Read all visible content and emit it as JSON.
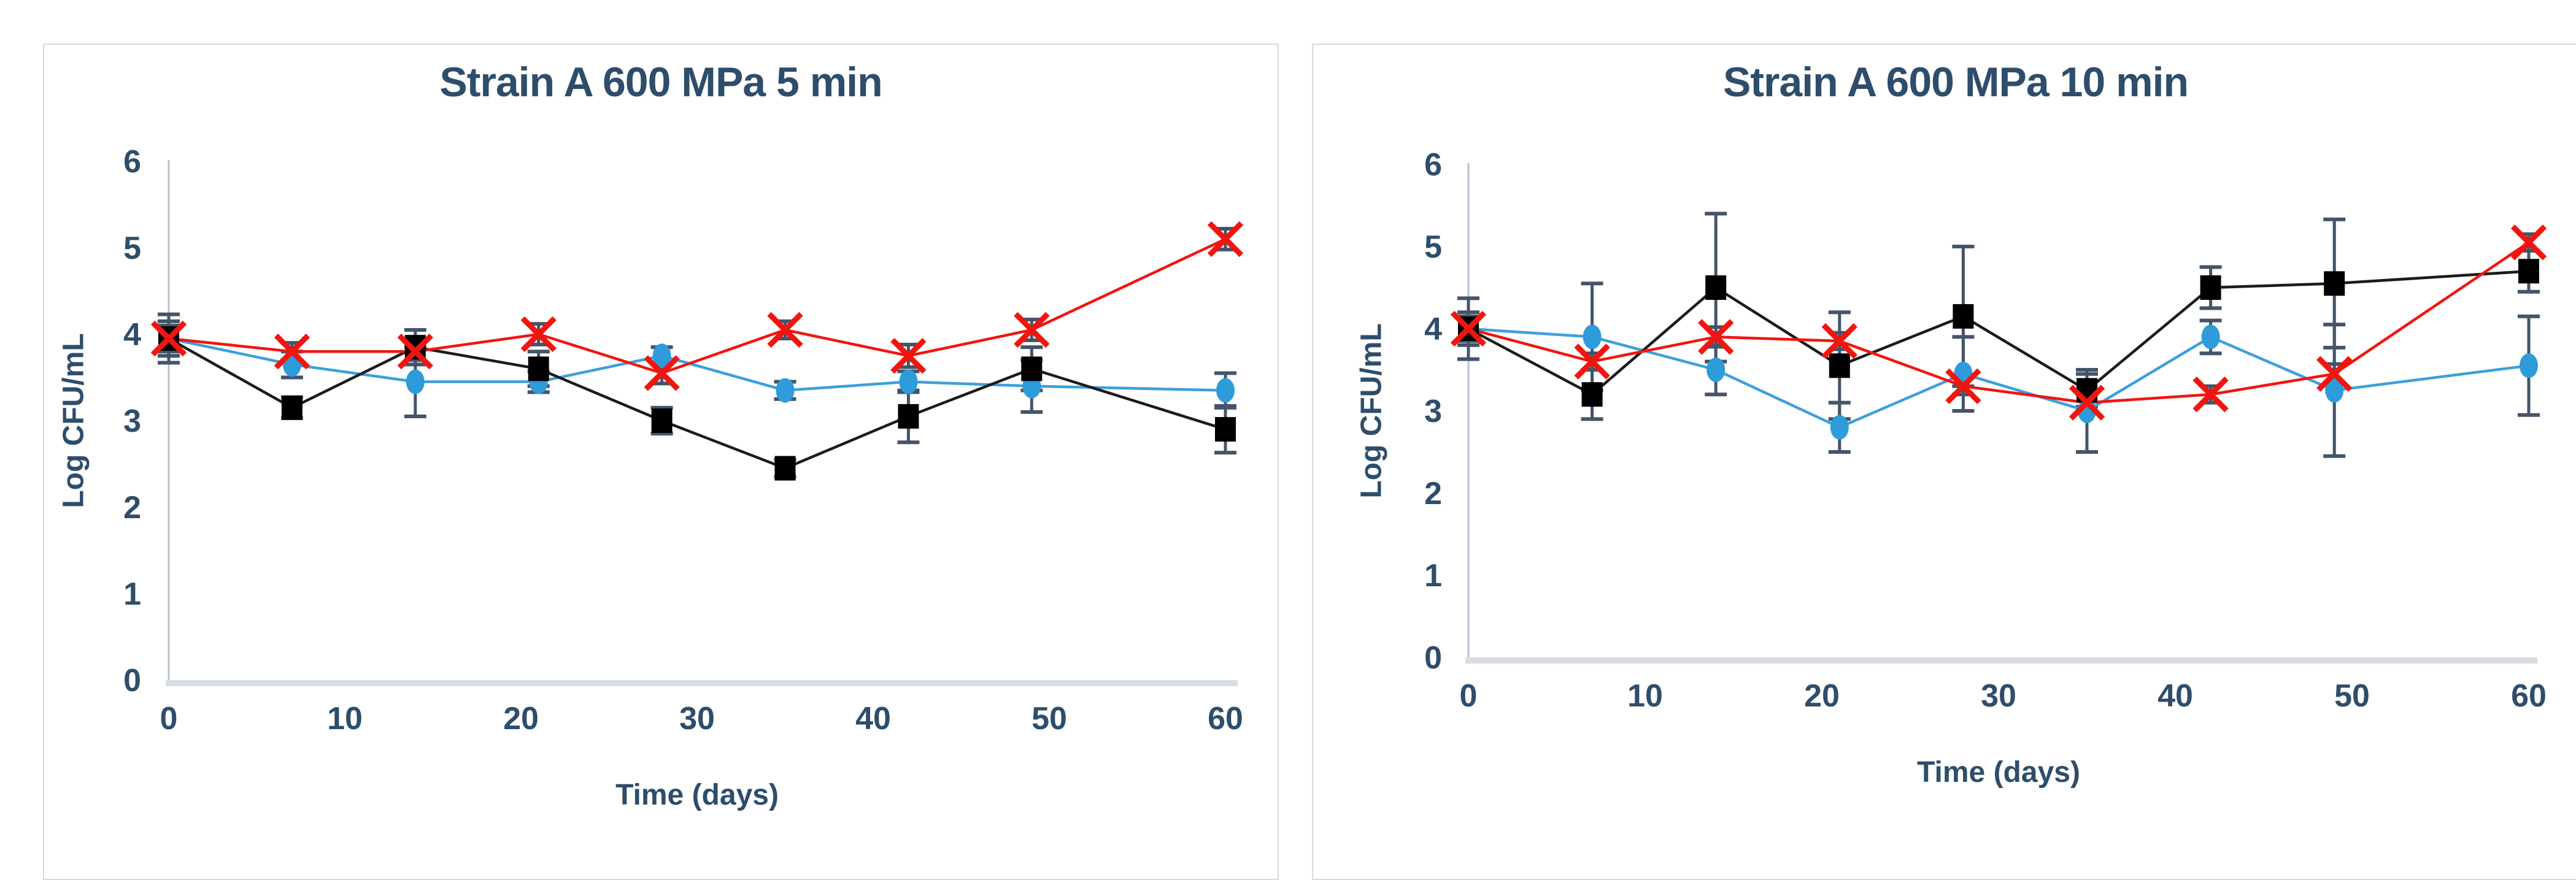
{
  "page": {
    "background": "#ffffff",
    "panel_border": "#d9d9d9",
    "text_color": "#2e4d6b",
    "axis_line_color": "#b6c2d0",
    "baseline_color": "#d8dde3",
    "error_bar_color": "#44546a"
  },
  "chart_data": [
    {
      "type": "line",
      "title": "Strain A 600 MPa 5 min",
      "xlabel": "Time (days)",
      "ylabel": "Log CFU/mL",
      "xlim": [
        0,
        60
      ],
      "ylim": [
        0,
        6
      ],
      "x_ticks": [
        0,
        10,
        20,
        30,
        40,
        50,
        60
      ],
      "y_ticks": [
        0,
        1,
        2,
        3,
        4,
        5,
        6
      ],
      "grid": false,
      "legend": "none",
      "x": [
        0,
        7,
        14,
        21,
        28,
        35,
        42,
        49,
        60
      ],
      "series": [
        {
          "name": "blue-circle-series",
          "marker": "circle",
          "marker_color": "#2e9bda",
          "line_color": "#3e9fdb",
          "values": [
            3.95,
            3.65,
            3.45,
            3.45,
            3.75,
            3.35,
            3.45,
            3.4,
            3.35
          ],
          "errors": [
            0.15,
            0.15,
            0.4,
            0.12,
            0.1,
            0.1,
            0.12,
            0.3,
            0.2
          ]
        },
        {
          "name": "black-square-series",
          "marker": "square",
          "marker_color": "#000000",
          "line_color": "#1b1b1b",
          "values": [
            3.95,
            3.15,
            3.85,
            3.6,
            3.0,
            2.45,
            3.05,
            3.6,
            2.9
          ],
          "errors": [
            0.28,
            0.12,
            0.2,
            0.2,
            0.15,
            0.1,
            0.3,
            0.25,
            0.27
          ]
        },
        {
          "name": "red-x-series",
          "marker": "x",
          "marker_color": "#f2150f",
          "line_color": "#f2150f",
          "values": [
            3.95,
            3.8,
            3.8,
            4.0,
            3.55,
            4.05,
            3.75,
            4.05,
            5.1
          ],
          "errors": [
            0.2,
            0.1,
            0.1,
            0.12,
            0.12,
            0.1,
            0.13,
            0.12,
            0.12
          ]
        }
      ]
    },
    {
      "type": "line",
      "title": "Strain A 600 MPa 10 min",
      "xlabel": "Time (days)",
      "ylabel": "Log CFU/mL",
      "xlim": [
        0,
        60
      ],
      "ylim": [
        0,
        6
      ],
      "x_ticks": [
        0,
        10,
        20,
        30,
        40,
        50,
        60
      ],
      "y_ticks": [
        0,
        1,
        2,
        3,
        4,
        5,
        6
      ],
      "grid": false,
      "legend": "none",
      "x": [
        0,
        7,
        14,
        21,
        28,
        35,
        42,
        49,
        60
      ],
      "series": [
        {
          "name": "blue-circle-series",
          "marker": "circle",
          "marker_color": "#2e9bda",
          "line_color": "#3e9fdb",
          "values": [
            4.0,
            3.9,
            3.5,
            2.8,
            3.45,
            3.0,
            3.9,
            3.25,
            3.55
          ],
          "errors": [
            0.2,
            0.65,
            0.3,
            0.3,
            0.45,
            0.5,
            0.2,
            0.8,
            0.6
          ]
        },
        {
          "name": "black-square-series",
          "marker": "square",
          "marker_color": "#000000",
          "line_color": "#1b1b1b",
          "values": [
            4.0,
            3.2,
            4.5,
            3.55,
            4.15,
            3.25,
            4.5,
            4.55,
            4.7
          ],
          "errors": [
            0.37,
            0.3,
            0.9,
            0.65,
            0.85,
            0.2,
            0.25,
            0.78,
            0.25
          ]
        },
        {
          "name": "red-x-series",
          "marker": "x",
          "marker_color": "#f2150f",
          "line_color": "#f2150f",
          "values": [
            4.0,
            3.6,
            3.9,
            3.85,
            3.3,
            3.1,
            3.2,
            3.45,
            5.05
          ],
          "errors": [
            0.15,
            0.1,
            0.12,
            0.1,
            0.1,
            0.1,
            0.1,
            0.12,
            0.1
          ]
        }
      ]
    }
  ]
}
